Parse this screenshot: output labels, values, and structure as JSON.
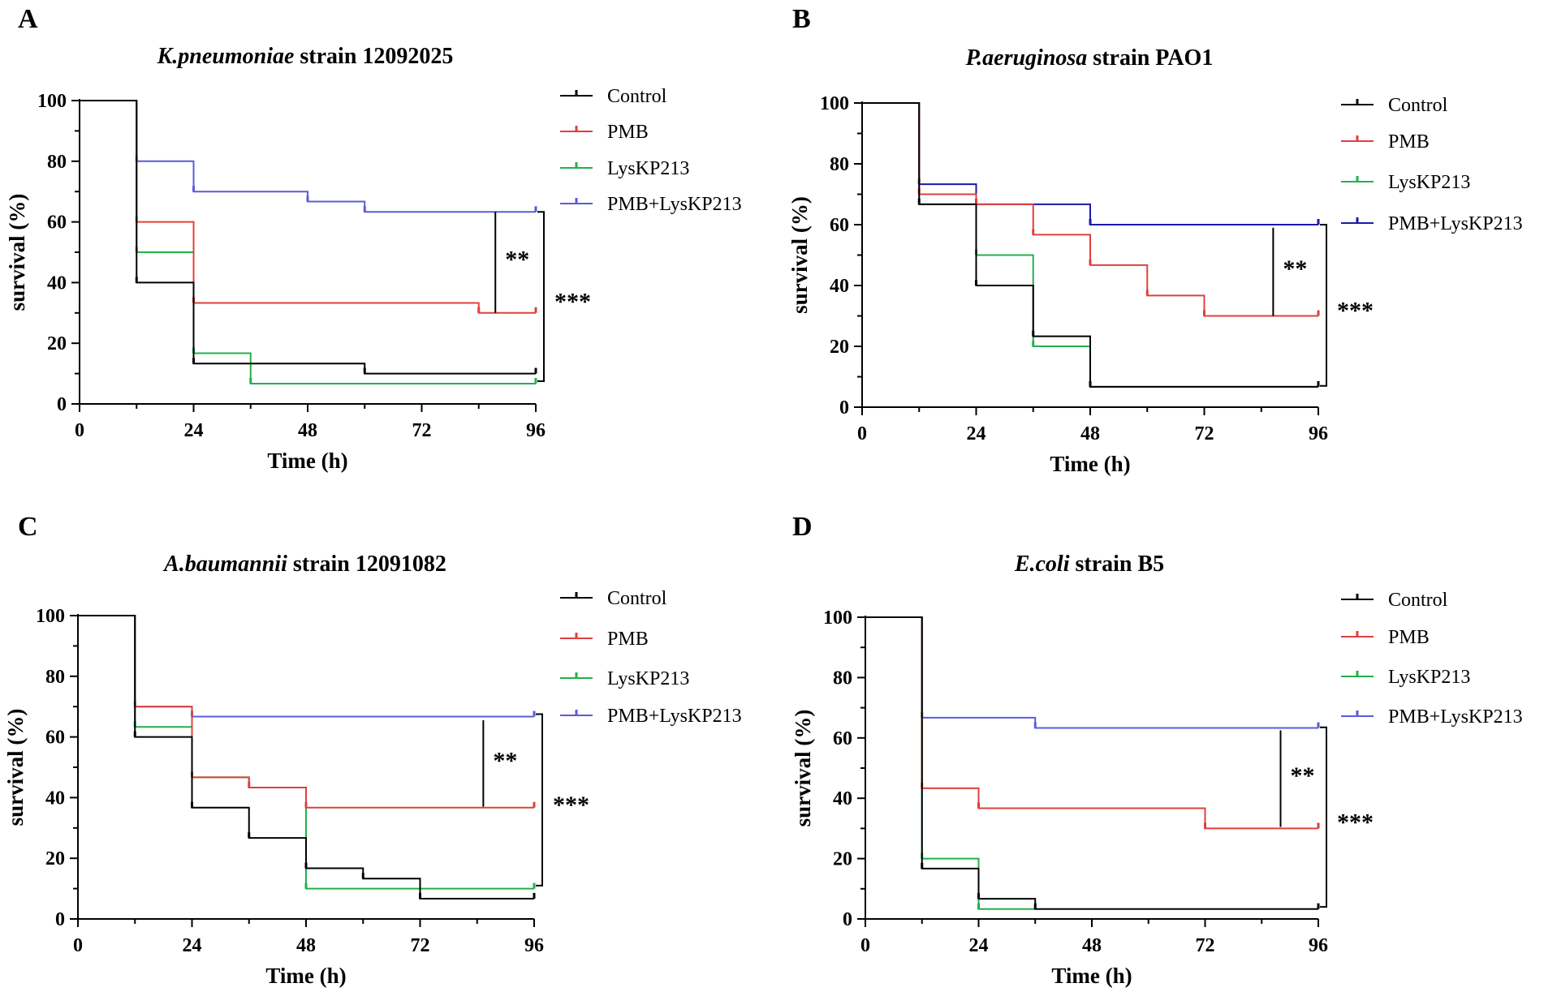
{
  "figure": {
    "label": "Kaplan-Meier survival curves"
  },
  "series_colors": {
    "Control": "#000000",
    "PMB": "#e0403c",
    "LysKP213": "#22b14c",
    "PMB+LysKP213": "#5b5bdb",
    "PMB+LysKP213_B": "#1a1aa8"
  },
  "chart_data": [
    {
      "panel": "A",
      "type": "line",
      "title_italic": "K.pneumoniae",
      "title_rest": " strain 12092025",
      "xlabel": "Time (h)",
      "ylabel": "survival (%)",
      "xlim": [
        0,
        96
      ],
      "ylim": [
        0,
        100
      ],
      "xticks": [
        0,
        24,
        48,
        72,
        96
      ],
      "yticks": [
        0,
        20,
        40,
        60,
        80,
        100
      ],
      "legend": [
        "Control",
        "PMB",
        "LysKP213",
        "PMB+LysKP213"
      ],
      "series": [
        {
          "name": "Control",
          "steps": [
            [
              0,
              100
            ],
            [
              12,
              40
            ],
            [
              24,
              13.3
            ],
            [
              60,
              10
            ],
            [
              96,
              10
            ]
          ],
          "censored": [
            [
              12,
              40
            ],
            [
              24,
              13.3
            ],
            [
              60,
              10
            ],
            [
              96,
              10
            ]
          ]
        },
        {
          "name": "PMB",
          "steps": [
            [
              0,
              100
            ],
            [
              12,
              60
            ],
            [
              24,
              33.3
            ],
            [
              84,
              30
            ],
            [
              96,
              30
            ]
          ],
          "censored": [
            [
              12,
              60
            ],
            [
              24,
              33.3
            ],
            [
              84,
              30
            ],
            [
              96,
              30
            ]
          ]
        },
        {
          "name": "LysKP213",
          "steps": [
            [
              0,
              100
            ],
            [
              12,
              50
            ],
            [
              24,
              16.7
            ],
            [
              36,
              6.7
            ],
            [
              96,
              6.7
            ]
          ],
          "censored": [
            [
              12,
              50
            ],
            [
              24,
              16.7
            ],
            [
              36,
              6.7
            ],
            [
              96,
              6.7
            ]
          ]
        },
        {
          "name": "PMB+LysKP213",
          "steps": [
            [
              0,
              100
            ],
            [
              12,
              80
            ],
            [
              24,
              70
            ],
            [
              48,
              66.7
            ],
            [
              60,
              63.3
            ],
            [
              96,
              63.3
            ]
          ],
          "censored": [
            [
              12,
              80
            ],
            [
              24,
              70
            ],
            [
              48,
              66.7
            ],
            [
              60,
              63.3
            ],
            [
              96,
              63.3
            ]
          ]
        }
      ],
      "significance": [
        {
          "label": "**",
          "kind": "line",
          "x": 87.5,
          "y_top": 63.3,
          "y_bottom": 30
        },
        {
          "label": "***",
          "kind": "bracket",
          "y_top": 63.3,
          "y_bottom": 7.5
        }
      ]
    },
    {
      "panel": "B",
      "type": "line",
      "title_italic": "P.aeruginosa",
      "title_rest": " strain PAO1",
      "xlabel": "Time (h)",
      "ylabel": "survival (%)",
      "xlim": [
        0,
        96
      ],
      "ylim": [
        0,
        100
      ],
      "xticks": [
        0,
        24,
        48,
        72,
        96
      ],
      "yticks": [
        0,
        20,
        40,
        60,
        80,
        100
      ],
      "legend": [
        "Control",
        "PMB",
        "LysKP213",
        "PMB+LysKP213"
      ],
      "series": [
        {
          "name": "Control",
          "steps": [
            [
              0,
              100
            ],
            [
              12,
              66.7
            ],
            [
              24,
              40
            ],
            [
              36,
              23.3
            ],
            [
              48,
              6.7
            ],
            [
              96,
              6.7
            ]
          ],
          "censored": [
            [
              12,
              66.7
            ],
            [
              24,
              40
            ],
            [
              36,
              23.3
            ],
            [
              48,
              6.7
            ],
            [
              96,
              6.7
            ]
          ]
        },
        {
          "name": "PMB",
          "steps": [
            [
              0,
              100
            ],
            [
              12,
              70
            ],
            [
              24,
              66.7
            ],
            [
              36,
              56.7
            ],
            [
              48,
              46.7
            ],
            [
              60,
              36.7
            ],
            [
              72,
              30
            ],
            [
              96,
              30
            ]
          ],
          "censored": [
            [
              12,
              70
            ],
            [
              24,
              66.7
            ],
            [
              36,
              56.7
            ],
            [
              48,
              46.7
            ],
            [
              60,
              36.7
            ],
            [
              72,
              30
            ],
            [
              96,
              30
            ]
          ]
        },
        {
          "name": "LysKP213",
          "steps": [
            [
              0,
              100
            ],
            [
              12,
              66.7
            ],
            [
              24,
              50
            ],
            [
              36,
              20
            ],
            [
              48,
              6.7
            ],
            [
              96,
              6.7
            ]
          ],
          "censored": [
            [
              24,
              50
            ],
            [
              36,
              20
            ]
          ]
        },
        {
          "name": "PMB+LysKP213",
          "color_key": "PMB+LysKP213_B",
          "steps": [
            [
              0,
              100
            ],
            [
              12,
              73.3
            ],
            [
              24,
              66.7
            ],
            [
              48,
              60
            ],
            [
              96,
              60
            ]
          ],
          "censored": [
            [
              12,
              73.3
            ],
            [
              24,
              66.7
            ],
            [
              48,
              60
            ],
            [
              96,
              60
            ]
          ]
        }
      ],
      "significance": [
        {
          "label": "**",
          "kind": "line",
          "x": 86.5,
          "y_top": 59,
          "y_bottom": 30
        },
        {
          "label": "***",
          "kind": "bracket",
          "y_top": 60,
          "y_bottom": 7
        }
      ]
    },
    {
      "panel": "C",
      "type": "line",
      "title_italic": "A.baumannii",
      "title_rest": " strain 12091082",
      "xlabel": "Time (h)",
      "ylabel": "survival (%)",
      "xlim": [
        0,
        96
      ],
      "ylim": [
        0,
        100
      ],
      "xticks": [
        0,
        24,
        48,
        72,
        96
      ],
      "yticks": [
        0,
        20,
        40,
        60,
        80,
        100
      ],
      "legend": [
        "Control",
        "PMB",
        "LysKP213",
        "PMB+LysKP213"
      ],
      "series": [
        {
          "name": "Control",
          "steps": [
            [
              0,
              100
            ],
            [
              12,
              60
            ],
            [
              24,
              36.7
            ],
            [
              36,
              26.7
            ],
            [
              48,
              16.7
            ],
            [
              60,
              13.3
            ],
            [
              72,
              6.7
            ],
            [
              96,
              6.7
            ]
          ],
          "censored": [
            [
              12,
              60
            ],
            [
              24,
              36.7
            ],
            [
              36,
              26.7
            ],
            [
              48,
              16.7
            ],
            [
              60,
              13.3
            ],
            [
              72,
              6.7
            ],
            [
              96,
              6.7
            ]
          ]
        },
        {
          "name": "PMB",
          "steps": [
            [
              0,
              100
            ],
            [
              12,
              70
            ],
            [
              24,
              46.7
            ],
            [
              36,
              43.3
            ],
            [
              48,
              36.7
            ],
            [
              96,
              36.7
            ]
          ],
          "censored": [
            [
              24,
              46.7
            ],
            [
              36,
              43.3
            ],
            [
              48,
              36.7
            ],
            [
              96,
              36.7
            ]
          ]
        },
        {
          "name": "LysKP213",
          "steps": [
            [
              0,
              100
            ],
            [
              12,
              63.3
            ],
            [
              24,
              46.7
            ],
            [
              36,
              43.3
            ],
            [
              48,
              10
            ],
            [
              96,
              10
            ]
          ],
          "censored": [
            [
              12,
              63.3
            ],
            [
              48,
              10
            ],
            [
              96,
              10
            ]
          ]
        },
        {
          "name": "PMB+LysKP213",
          "steps": [
            [
              0,
              100
            ],
            [
              12,
              70
            ],
            [
              24,
              66.7
            ],
            [
              96,
              66.7
            ]
          ],
          "censored": [
            [
              12,
              70
            ],
            [
              24,
              66.7
            ],
            [
              96,
              66.7
            ]
          ]
        }
      ],
      "significance": [
        {
          "label": "**",
          "kind": "line",
          "x": 85.3,
          "y_top": 65.5,
          "y_bottom": 37
        },
        {
          "label": "***",
          "kind": "bracket",
          "y_top": 67.5,
          "y_bottom": 11
        }
      ]
    },
    {
      "panel": "D",
      "type": "line",
      "title_italic": "E.coli",
      "title_rest": " strain B5",
      "xlabel": "Time (h)",
      "ylabel": "survival (%)",
      "xlim": [
        0,
        96
      ],
      "ylim": [
        0,
        100
      ],
      "xticks": [
        0,
        24,
        48,
        72,
        96
      ],
      "yticks": [
        0,
        20,
        40,
        60,
        80,
        100
      ],
      "legend": [
        "Control",
        "PMB",
        "LysKP213",
        "PMB+LysKP213"
      ],
      "series": [
        {
          "name": "Control",
          "steps": [
            [
              0,
              100
            ],
            [
              12,
              16.7
            ],
            [
              24,
              6.7
            ],
            [
              36,
              3.3
            ],
            [
              96,
              3.3
            ]
          ],
          "censored": [
            [
              12,
              16.7
            ],
            [
              24,
              6.7
            ],
            [
              36,
              3.3
            ],
            [
              96,
              3.3
            ]
          ]
        },
        {
          "name": "PMB",
          "steps": [
            [
              0,
              100
            ],
            [
              12,
              43.3
            ],
            [
              24,
              36.7
            ],
            [
              72,
              30
            ],
            [
              96,
              30
            ]
          ],
          "censored": [
            [
              12,
              43.3
            ],
            [
              24,
              36.7
            ],
            [
              72,
              30
            ],
            [
              96,
              30
            ]
          ]
        },
        {
          "name": "LysKP213",
          "steps": [
            [
              0,
              100
            ],
            [
              12,
              20
            ],
            [
              24,
              3.3
            ],
            [
              36,
              3.3
            ]
          ],
          "censored": [
            [
              12,
              20
            ],
            [
              24,
              3.3
            ]
          ]
        },
        {
          "name": "PMB+LysKP213",
          "steps": [
            [
              0,
              100
            ],
            [
              12,
              66.7
            ],
            [
              36,
              63.3
            ],
            [
              96,
              63.3
            ]
          ],
          "censored": [
            [
              12,
              66.7
            ],
            [
              36,
              63.3
            ],
            [
              96,
              63.3
            ]
          ]
        }
      ],
      "significance": [
        {
          "label": "**",
          "kind": "line",
          "x": 88,
          "y_top": 62.5,
          "y_bottom": 30.5
        },
        {
          "label": "***",
          "kind": "bracket",
          "y_top": 63.5,
          "y_bottom": 4
        }
      ]
    }
  ]
}
